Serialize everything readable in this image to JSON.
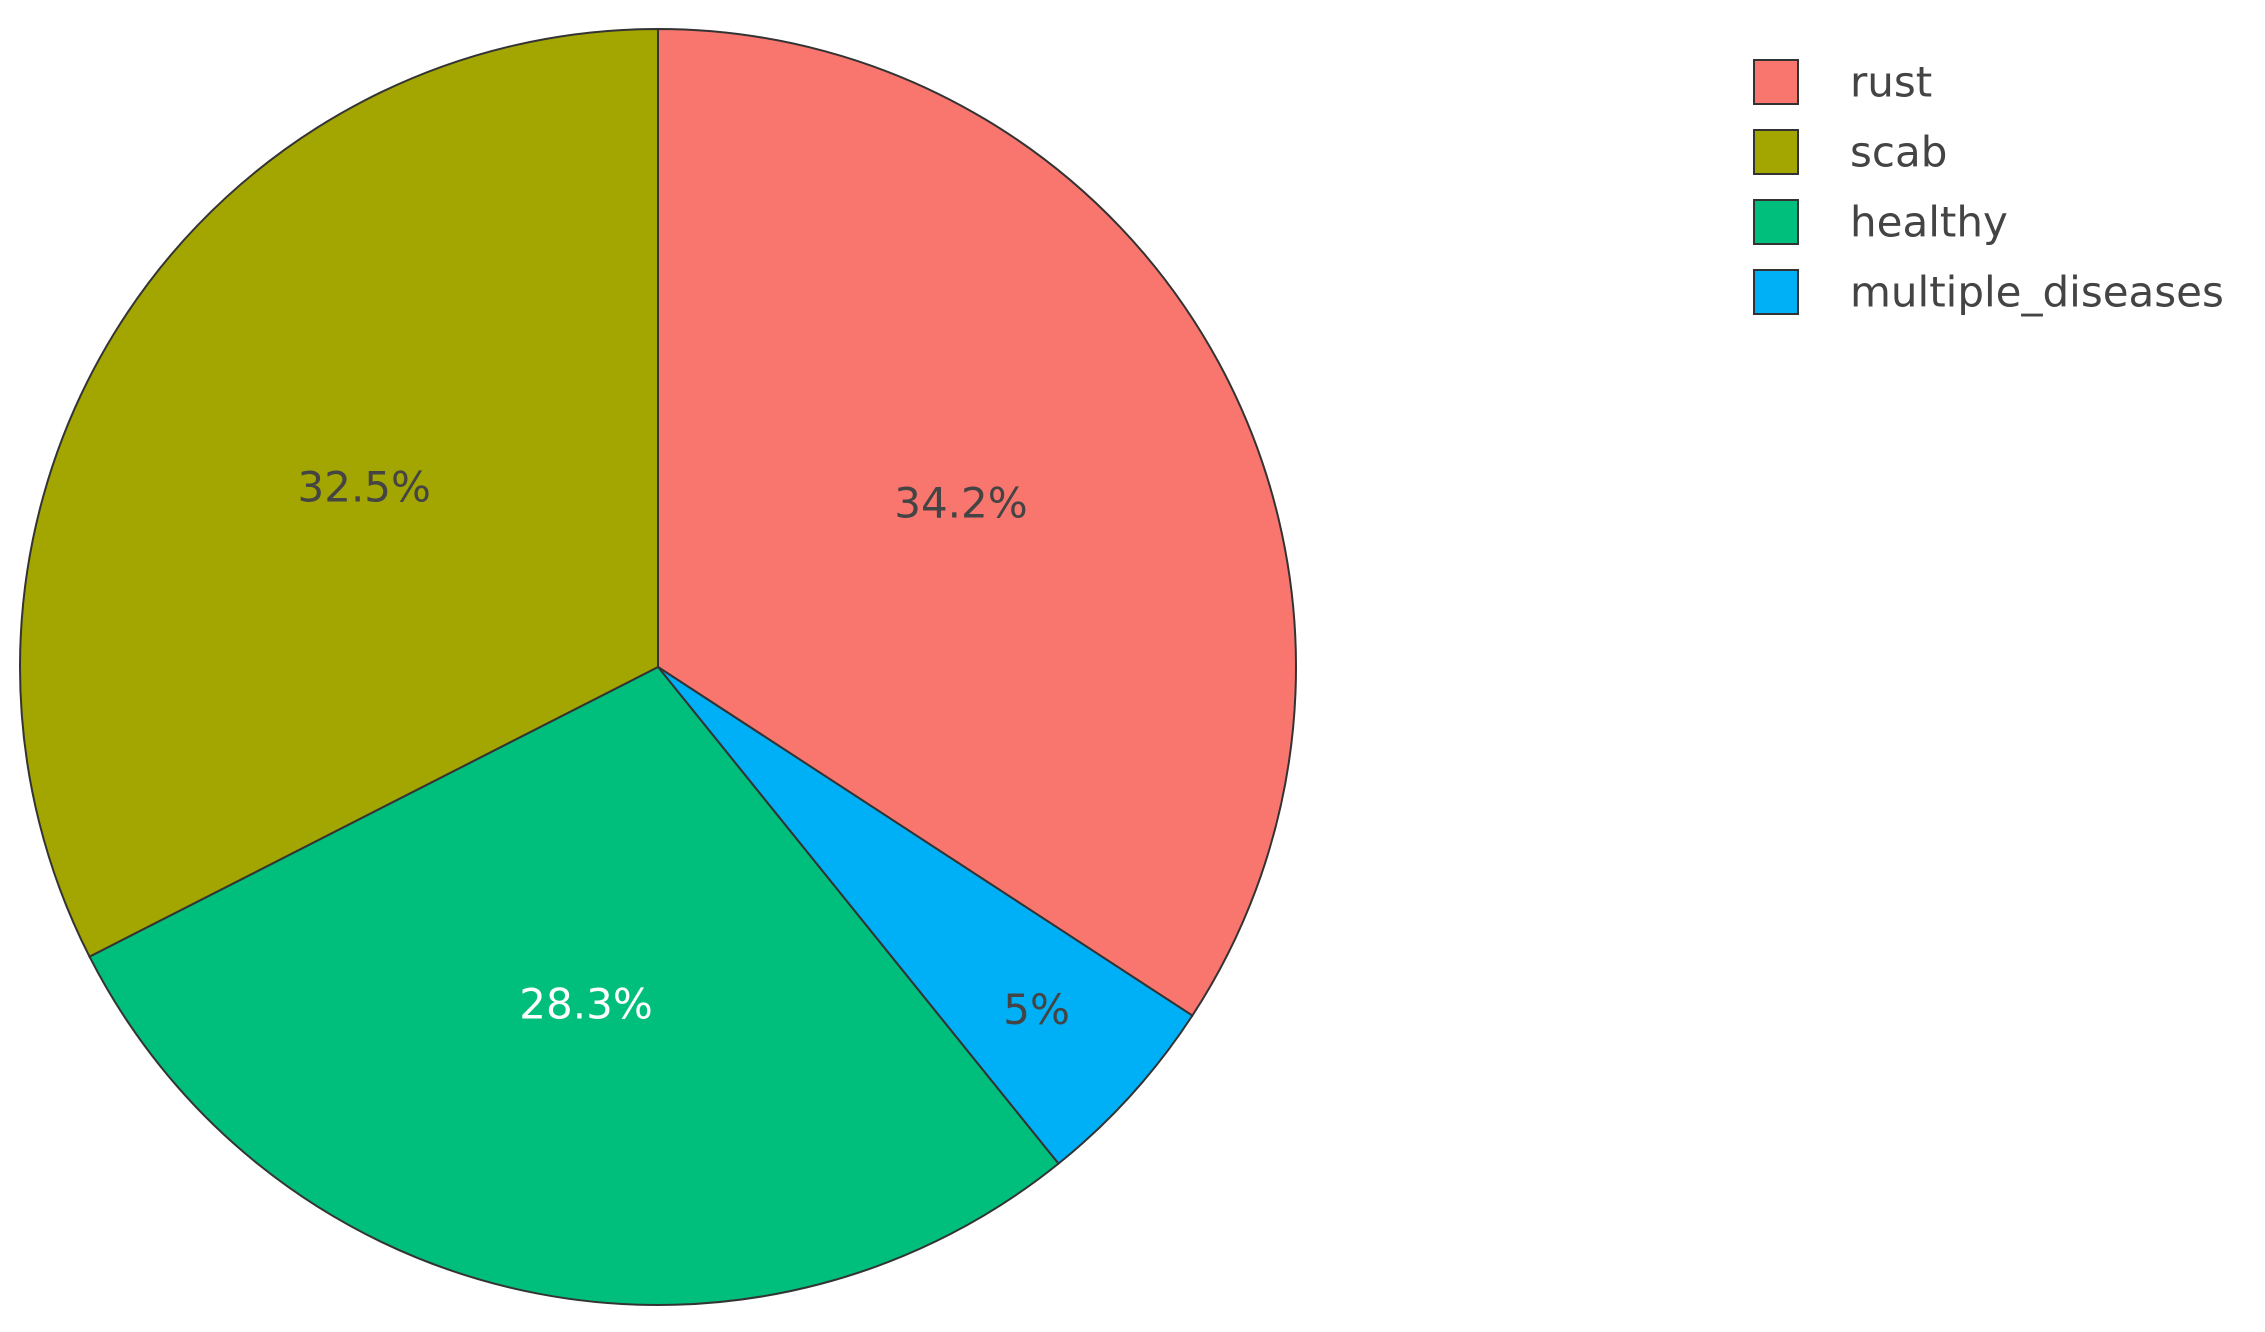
{
  "chart_data": {
    "type": "pie",
    "direction": "clockwise",
    "start": "12 o'clock",
    "slices": [
      {
        "label": "rust",
        "value": 34.2,
        "text": "34.2%",
        "color": "#F8766D",
        "text_color": "#444444"
      },
      {
        "label": "multiple_diseases",
        "value": 5.0,
        "text": "5%",
        "color": "#00B0F6",
        "text_color": "#444444"
      },
      {
        "label": "healthy",
        "value": 28.3,
        "text": "28.3%",
        "color": "#00BF7D",
        "text_color": "#ffffff"
      },
      {
        "label": "scab",
        "value": 32.5,
        "text": "32.5%",
        "color": "#A3A500",
        "text_color": "#444444"
      }
    ],
    "legend": {
      "placement": "top-right",
      "items": [
        {
          "label": "rust",
          "color": "#F8766D"
        },
        {
          "label": "scab",
          "color": "#A3A500"
        },
        {
          "label": "healthy",
          "color": "#00BF7D"
        },
        {
          "label": "multiple_diseases",
          "color": "#00B0F6"
        }
      ]
    },
    "slice_border_color": "#333333",
    "label_format": "percent"
  }
}
